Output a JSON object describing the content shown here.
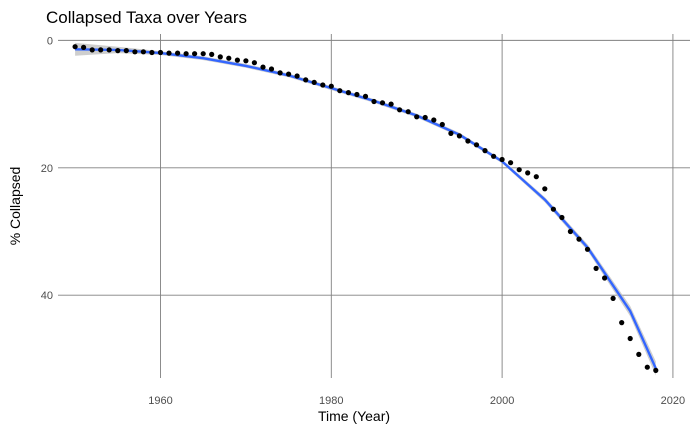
{
  "chart_data": {
    "type": "scatter",
    "title": "Collapsed Taxa over Years",
    "xlabel": "Time (Year)",
    "ylabel": "% Collapsed",
    "xlim": [
      1948,
      2022
    ],
    "ylim": [
      -1,
      53
    ],
    "y_reversed": true,
    "grid": true,
    "x_ticks": [
      1960,
      1980,
      2000,
      2020
    ],
    "x_tick_labels": [
      "1960",
      "1980",
      "2000",
      "2020"
    ],
    "y_ticks": [
      0,
      20,
      40
    ],
    "y_tick_labels": [
      "0",
      "20",
      "40"
    ],
    "colors": {
      "points": "#000000",
      "trend": "#3366FF",
      "ribbon": "#bdbdbd",
      "grid": "#808080"
    },
    "series": [
      {
        "kind": "points",
        "x": [
          1950,
          1951,
          1952,
          1953,
          1954,
          1955,
          1956,
          1957,
          1958,
          1959,
          1960,
          1961,
          1962,
          1963,
          1964,
          1965,
          1966,
          1967,
          1968,
          1969,
          1970,
          1971,
          1972,
          1973,
          1974,
          1975,
          1976,
          1977,
          1978,
          1979,
          1980,
          1981,
          1982,
          1983,
          1984,
          1985,
          1986,
          1987,
          1988,
          1989,
          1990,
          1991,
          1992,
          1993,
          1994,
          1995,
          1996,
          1997,
          1998,
          1999,
          2000,
          2001,
          2002,
          2003,
          2004,
          2005,
          2006,
          2007,
          2008,
          2009,
          2010,
          2011,
          2012,
          2013,
          2014,
          2015,
          2016,
          2017,
          2018
        ],
        "y": [
          1.0,
          1.1,
          1.5,
          1.5,
          1.5,
          1.6,
          1.6,
          1.8,
          1.8,
          1.9,
          1.9,
          2.0,
          2.0,
          2.1,
          2.1,
          2.1,
          2.2,
          2.6,
          2.8,
          3.1,
          3.2,
          3.5,
          4.2,
          4.5,
          5.1,
          5.3,
          5.6,
          6.2,
          6.6,
          7.0,
          7.2,
          7.9,
          8.2,
          8.5,
          8.8,
          9.6,
          9.8,
          10.0,
          10.9,
          11.2,
          12.0,
          12.1,
          12.5,
          13.2,
          14.6,
          15.0,
          15.8,
          16.4,
          17.3,
          18.2,
          18.7,
          19.2,
          20.3,
          20.8,
          21.4,
          23.3,
          26.5,
          27.8,
          30.0,
          31.2,
          32.8,
          35.8,
          37.3,
          40.5,
          44.3,
          46.8,
          49.3,
          51.3,
          51.8
        ]
      },
      {
        "kind": "smooth",
        "x": [
          1950,
          1955,
          1960,
          1965,
          1970,
          1975,
          1980,
          1985,
          1990,
          1995,
          2000,
          2005,
          2010,
          2015,
          2018
        ],
        "y": [
          1.4,
          1.5,
          2.0,
          2.8,
          4.0,
          5.5,
          7.5,
          9.5,
          11.8,
          14.8,
          19.0,
          25.0,
          32.5,
          42.5,
          51.5
        ],
        "ribbon_halfwidth": [
          1.0,
          0.5,
          0.3,
          0.3,
          0.3,
          0.3,
          0.3,
          0.3,
          0.3,
          0.3,
          0.3,
          0.4,
          0.5,
          0.8,
          1.1
        ]
      }
    ]
  }
}
